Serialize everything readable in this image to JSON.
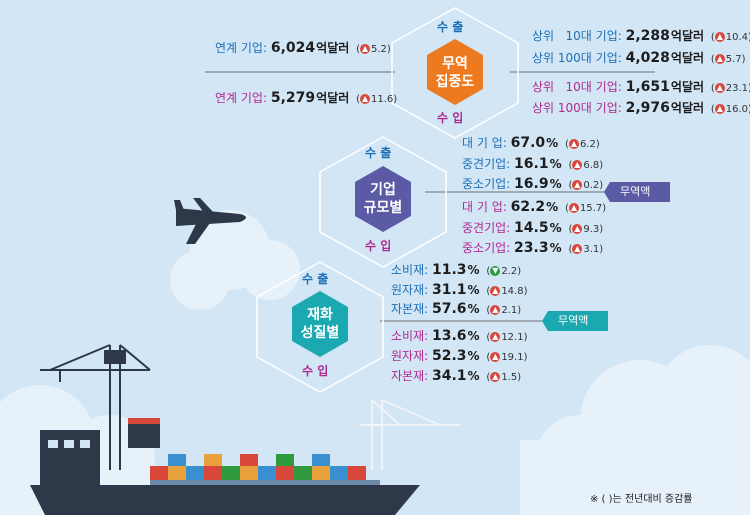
{
  "hex_labels": {
    "export": "수 출",
    "import": "수 입"
  },
  "trade_concentration": {
    "title": [
      "무역",
      "집중도"
    ],
    "export_left": {
      "label": "연계 기업:",
      "value": "6,024",
      "unit": "억달러",
      "change": "5.2",
      "dir": "up"
    },
    "import_left": {
      "label": "연계 기업:",
      "value": "5,279",
      "unit": "억달러",
      "change": "11.6",
      "dir": "up"
    },
    "export_right": [
      {
        "label": "상위   10대 기업:",
        "value": "2,288",
        "unit": "억달러",
        "change": "10.4",
        "dir": "up"
      },
      {
        "label": "상위 100대 기업:",
        "value": "4,028",
        "unit": "억달러",
        "change": "5.7",
        "dir": "up"
      }
    ],
    "import_right": [
      {
        "label": "상위   10대 기업:",
        "value": "1,651",
        "unit": "억달러",
        "change": "23.1",
        "dir": "up"
      },
      {
        "label": "상위 100대 기업:",
        "value": "2,976",
        "unit": "억달러",
        "change": "16.0",
        "dir": "up"
      }
    ]
  },
  "company_size": {
    "title": [
      "기업",
      "규모별"
    ],
    "badge": "무역액",
    "export": [
      {
        "label": "대 기 업:",
        "value": "67.0",
        "unit": "%",
        "change": "6.2",
        "dir": "up"
      },
      {
        "label": "중견기업:",
        "value": "16.1",
        "unit": "%",
        "change": "6.8",
        "dir": "up"
      },
      {
        "label": "중소기업:",
        "value": "16.9",
        "unit": "%",
        "change": "0.2",
        "dir": "up"
      }
    ],
    "import": [
      {
        "label": "대 기 업:",
        "value": "62.2",
        "unit": "%",
        "change": "15.7",
        "dir": "up"
      },
      {
        "label": "중견기업:",
        "value": "14.5",
        "unit": "%",
        "change": "9.3",
        "dir": "up"
      },
      {
        "label": "중소기업:",
        "value": "23.3",
        "unit": "%",
        "change": "3.1",
        "dir": "up"
      }
    ]
  },
  "goods_type": {
    "title": [
      "재화",
      "성질별"
    ],
    "badge": "무역액",
    "export": [
      {
        "label": "소비재:",
        "value": "11.3",
        "unit": "%",
        "change": "2.2",
        "dir": "down"
      },
      {
        "label": "원자재:",
        "value": "31.1",
        "unit": "%",
        "change": "14.8",
        "dir": "up"
      },
      {
        "label": "자본재:",
        "value": "57.6",
        "unit": "%",
        "change": "2.1",
        "dir": "up"
      }
    ],
    "import": [
      {
        "label": "소비재:",
        "value": "13.6",
        "unit": "%",
        "change": "12.1",
        "dir": "up"
      },
      {
        "label": "원자재:",
        "value": "52.3",
        "unit": "%",
        "change": "19.1",
        "dir": "up"
      },
      {
        "label": "자본재:",
        "value": "34.1",
        "unit": "%",
        "change": "1.5",
        "dir": "up"
      }
    ]
  },
  "footnote": "※ (      )는 전년대비 증감률",
  "colors": {
    "orange": "#ee7a1f",
    "purple": "#5a5aa5",
    "teal": "#1aa9b0",
    "export": "#1e6fb5",
    "import": "#b02a8f"
  }
}
